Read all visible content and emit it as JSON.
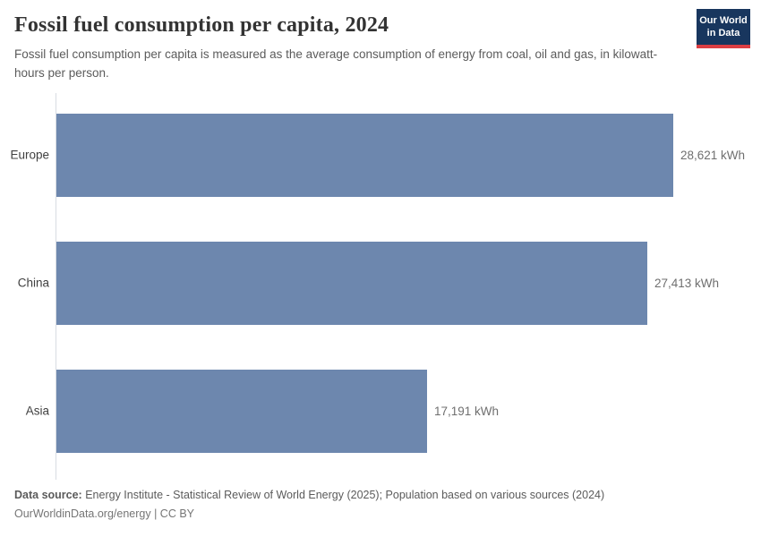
{
  "header": {
    "title": "Fossil fuel consumption per capita, 2024",
    "subtitle": "Fossil fuel consumption per capita is measured as the average consumption of energy from coal, oil and gas, in kilowatt-hours per person.",
    "logo": {
      "line1": "Our World",
      "line2": "in Data",
      "background_color": "#18365e",
      "accent_color": "#dc3e43"
    }
  },
  "chart_data": {
    "type": "bar",
    "orientation": "horizontal",
    "title": "Fossil fuel consumption per capita, 2024",
    "categories": [
      "Europe",
      "China",
      "Asia"
    ],
    "values": [
      28621,
      27413,
      17191
    ],
    "value_labels": [
      "28,621 kWh",
      "27,413 kWh",
      "17,191 kWh"
    ],
    "unit": "kWh",
    "xlim": [
      0,
      28621
    ],
    "grid": false,
    "legend": false,
    "bar_color": "#6d87ae",
    "axis_line_color": "#d8dce2"
  },
  "footer": {
    "source_label": "Data source:",
    "source_text": " Energy Institute - Statistical Review of World Energy (2025); Population based on various sources (2024)",
    "license_text": "OurWorldinData.org/energy | CC BY"
  }
}
